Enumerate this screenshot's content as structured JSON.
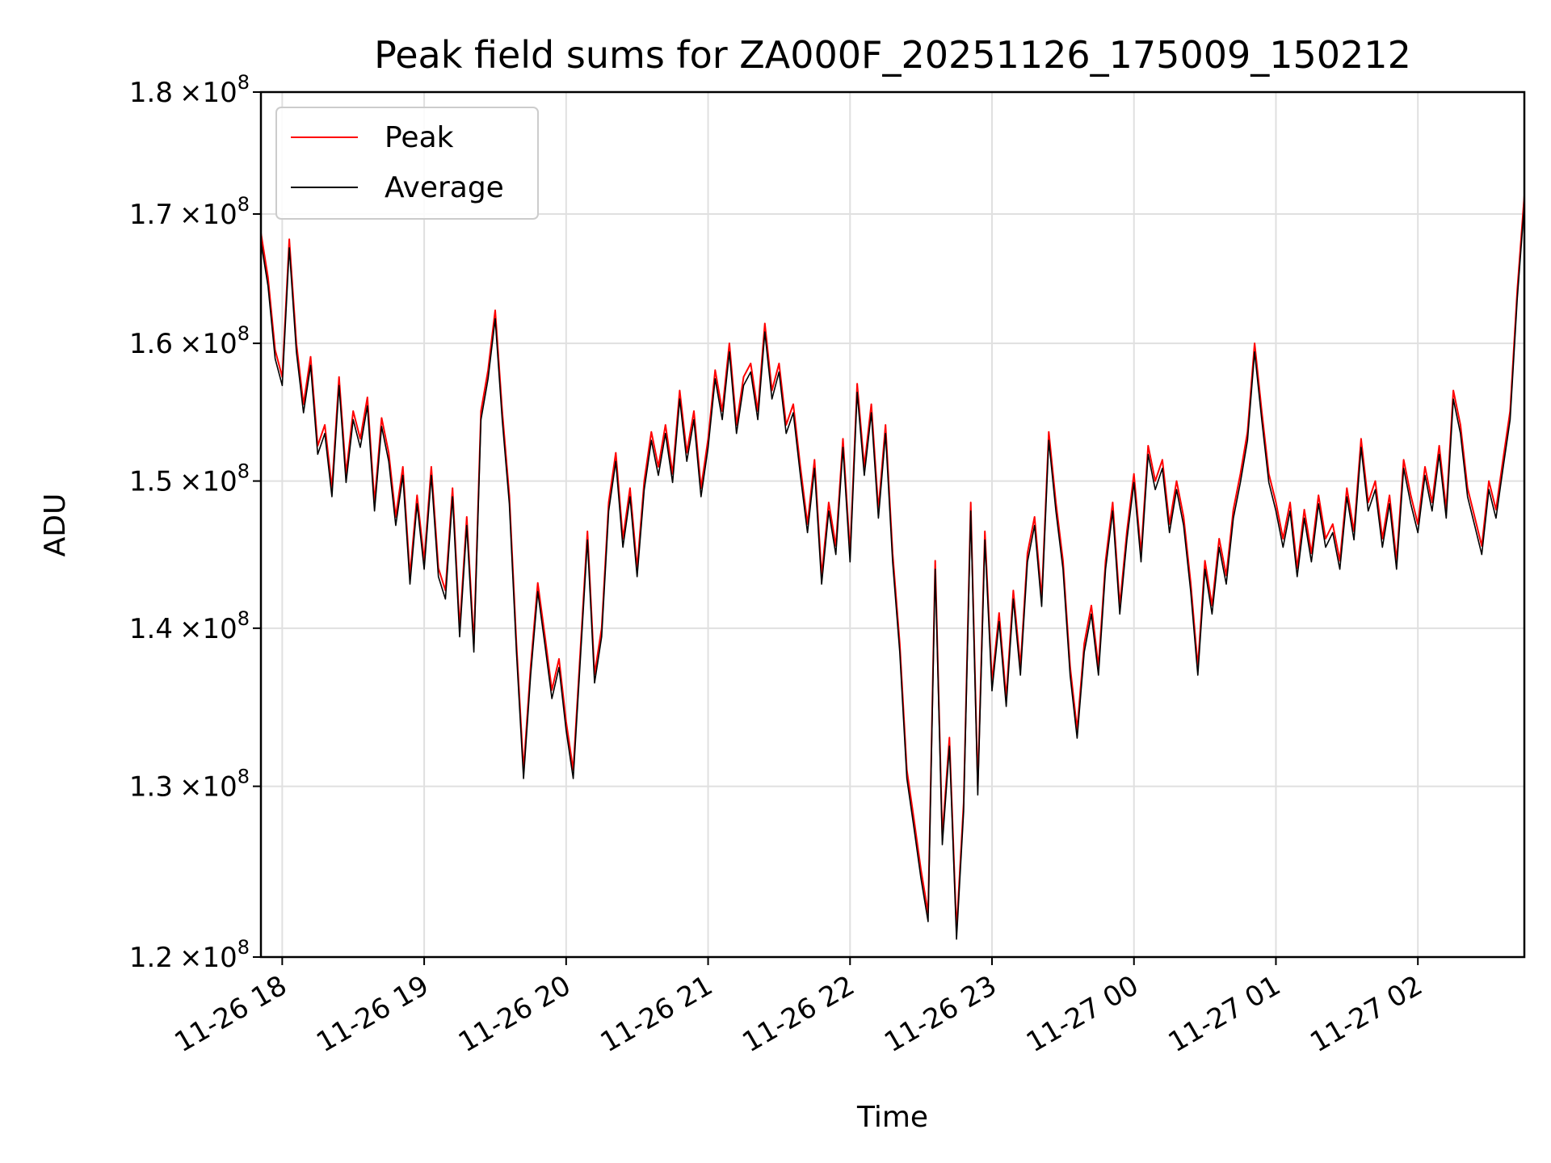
{
  "chart_data": {
    "type": "line",
    "title": "Peak field sums for ZA000F_20251126_175009_150212",
    "xlabel": "Time",
    "ylabel": "ADU",
    "log_y": true,
    "grid": true,
    "legend_position": "upper-left",
    "xlim_hours": [
      17.85,
      26.75
    ],
    "ylim": [
      120000000,
      180000000
    ],
    "x_ticks": [
      {
        "hour": 18,
        "label": "11-26 18"
      },
      {
        "hour": 19,
        "label": "11-26 19"
      },
      {
        "hour": 20,
        "label": "11-26 20"
      },
      {
        "hour": 21,
        "label": "11-26 21"
      },
      {
        "hour": 22,
        "label": "11-26 22"
      },
      {
        "hour": 23,
        "label": "11-26 23"
      },
      {
        "hour": 24,
        "label": "11-27 00"
      },
      {
        "hour": 25,
        "label": "11-27 01"
      },
      {
        "hour": 26,
        "label": "11-27 02"
      }
    ],
    "y_ticks": [
      {
        "value": 120000000,
        "mantissa": "1.2",
        "exp": "8"
      },
      {
        "value": 130000000,
        "mantissa": "1.3",
        "exp": "8"
      },
      {
        "value": 140000000,
        "mantissa": "1.4",
        "exp": "8"
      },
      {
        "value": 150000000,
        "mantissa": "1.5",
        "exp": "8"
      },
      {
        "value": 160000000,
        "mantissa": "1.6",
        "exp": "8"
      },
      {
        "value": 170000000,
        "mantissa": "1.7",
        "exp": "8"
      },
      {
        "value": 180000000,
        "mantissa": "1.8",
        "exp": "8"
      }
    ],
    "times_label": "×10",
    "series": [
      {
        "name": "Peak",
        "color": "#ff0000",
        "points": [
          [
            17.85,
            168.5
          ],
          [
            17.9,
            165.0
          ],
          [
            17.95,
            159.5
          ],
          [
            18.0,
            157.5
          ],
          [
            18.05,
            168.0
          ],
          [
            18.1,
            160.0
          ],
          [
            18.15,
            155.5
          ],
          [
            18.2,
            159.0
          ],
          [
            18.25,
            152.5
          ],
          [
            18.3,
            154.0
          ],
          [
            18.35,
            149.5
          ],
          [
            18.4,
            157.5
          ],
          [
            18.45,
            150.5
          ],
          [
            18.5,
            155.0
          ],
          [
            18.55,
            153.0
          ],
          [
            18.6,
            156.0
          ],
          [
            18.65,
            148.5
          ],
          [
            18.7,
            154.5
          ],
          [
            18.75,
            152.0
          ],
          [
            18.8,
            147.5
          ],
          [
            18.85,
            151.0
          ],
          [
            18.9,
            143.5
          ],
          [
            18.95,
            149.0
          ],
          [
            19.0,
            144.5
          ],
          [
            19.05,
            151.0
          ],
          [
            19.1,
            144.0
          ],
          [
            19.15,
            142.5
          ],
          [
            19.2,
            149.5
          ],
          [
            19.25,
            140.0
          ],
          [
            19.3,
            147.5
          ],
          [
            19.35,
            139.0
          ],
          [
            19.4,
            155.0
          ],
          [
            19.45,
            158.0
          ],
          [
            19.5,
            162.5
          ],
          [
            19.55,
            155.0
          ],
          [
            19.6,
            149.0
          ],
          [
            19.65,
            139.0
          ],
          [
            19.7,
            131.0
          ],
          [
            19.75,
            137.5
          ],
          [
            19.8,
            143.0
          ],
          [
            19.85,
            139.5
          ],
          [
            19.9,
            136.0
          ],
          [
            19.95,
            138.0
          ],
          [
            20.0,
            134.0
          ],
          [
            20.05,
            131.0
          ],
          [
            20.1,
            138.5
          ],
          [
            20.15,
            146.5
          ],
          [
            20.2,
            137.0
          ],
          [
            20.25,
            140.0
          ],
          [
            20.3,
            148.5
          ],
          [
            20.35,
            152.0
          ],
          [
            20.4,
            146.0
          ],
          [
            20.45,
            149.5
          ],
          [
            20.5,
            144.0
          ],
          [
            20.55,
            150.0
          ],
          [
            20.6,
            153.5
          ],
          [
            20.65,
            151.0
          ],
          [
            20.7,
            154.0
          ],
          [
            20.75,
            150.5
          ],
          [
            20.8,
            156.5
          ],
          [
            20.85,
            152.0
          ],
          [
            20.9,
            155.0
          ],
          [
            20.95,
            149.5
          ],
          [
            21.0,
            153.0
          ],
          [
            21.05,
            158.0
          ],
          [
            21.1,
            155.0
          ],
          [
            21.15,
            160.0
          ],
          [
            21.2,
            154.0
          ],
          [
            21.25,
            157.5
          ],
          [
            21.3,
            158.5
          ],
          [
            21.35,
            155.0
          ],
          [
            21.4,
            161.5
          ],
          [
            21.45,
            156.5
          ],
          [
            21.5,
            158.5
          ],
          [
            21.55,
            154.0
          ],
          [
            21.6,
            155.5
          ],
          [
            21.65,
            151.0
          ],
          [
            21.7,
            147.0
          ],
          [
            21.75,
            151.5
          ],
          [
            21.8,
            143.5
          ],
          [
            21.85,
            148.5
          ],
          [
            21.9,
            145.5
          ],
          [
            21.95,
            153.0
          ],
          [
            22.0,
            145.0
          ],
          [
            22.05,
            157.0
          ],
          [
            22.1,
            151.0
          ],
          [
            22.15,
            155.5
          ],
          [
            22.2,
            148.0
          ],
          [
            22.25,
            154.0
          ],
          [
            22.3,
            145.0
          ],
          [
            22.35,
            139.0
          ],
          [
            22.4,
            131.0
          ],
          [
            22.45,
            128.0
          ],
          [
            22.5,
            125.0
          ],
          [
            22.55,
            122.5
          ],
          [
            22.6,
            144.5
          ],
          [
            22.65,
            127.0
          ],
          [
            22.7,
            133.0
          ],
          [
            22.75,
            121.5
          ],
          [
            22.8,
            129.0
          ],
          [
            22.85,
            148.5
          ],
          [
            22.9,
            130.0
          ],
          [
            22.95,
            146.5
          ],
          [
            23.0,
            136.5
          ],
          [
            23.05,
            141.0
          ],
          [
            23.1,
            135.5
          ],
          [
            23.15,
            142.5
          ],
          [
            23.2,
            137.5
          ],
          [
            23.25,
            145.0
          ],
          [
            23.3,
            147.5
          ],
          [
            23.35,
            142.0
          ],
          [
            23.4,
            153.5
          ],
          [
            23.45,
            148.5
          ],
          [
            23.5,
            144.5
          ],
          [
            23.55,
            137.5
          ],
          [
            23.6,
            133.5
          ],
          [
            23.65,
            139.0
          ],
          [
            23.7,
            141.5
          ],
          [
            23.75,
            137.5
          ],
          [
            23.8,
            144.5
          ],
          [
            23.85,
            148.5
          ],
          [
            23.9,
            141.5
          ],
          [
            23.95,
            146.5
          ],
          [
            24.0,
            150.5
          ],
          [
            24.05,
            145.0
          ],
          [
            24.1,
            152.5
          ],
          [
            24.15,
            150.0
          ],
          [
            24.2,
            151.5
          ],
          [
            24.25,
            147.0
          ],
          [
            24.3,
            150.0
          ],
          [
            24.35,
            147.5
          ],
          [
            24.4,
            143.0
          ],
          [
            24.45,
            137.5
          ],
          [
            24.5,
            144.5
          ],
          [
            24.55,
            141.5
          ],
          [
            24.6,
            146.0
          ],
          [
            24.65,
            143.5
          ],
          [
            24.7,
            148.0
          ],
          [
            24.75,
            150.5
          ],
          [
            24.8,
            153.5
          ],
          [
            24.85,
            160.0
          ],
          [
            24.9,
            155.0
          ],
          [
            24.95,
            150.5
          ],
          [
            25.0,
            148.5
          ],
          [
            25.05,
            146.0
          ],
          [
            25.1,
            148.5
          ],
          [
            25.15,
            144.0
          ],
          [
            25.2,
            148.0
          ],
          [
            25.25,
            145.0
          ],
          [
            25.3,
            149.0
          ],
          [
            25.35,
            146.0
          ],
          [
            25.4,
            147.0
          ],
          [
            25.45,
            144.5
          ],
          [
            25.5,
            149.5
          ],
          [
            25.55,
            146.5
          ],
          [
            25.6,
            153.0
          ],
          [
            25.65,
            148.5
          ],
          [
            25.7,
            150.0
          ],
          [
            25.75,
            146.0
          ],
          [
            25.8,
            149.0
          ],
          [
            25.85,
            144.5
          ],
          [
            25.9,
            151.5
          ],
          [
            25.95,
            149.0
          ],
          [
            26.0,
            147.0
          ],
          [
            26.05,
            151.0
          ],
          [
            26.1,
            148.5
          ],
          [
            26.15,
            152.5
          ],
          [
            26.2,
            148.0
          ],
          [
            26.25,
            156.5
          ],
          [
            26.3,
            154.0
          ],
          [
            26.35,
            149.5
          ],
          [
            26.4,
            147.5
          ],
          [
            26.45,
            145.5
          ],
          [
            26.5,
            150.0
          ],
          [
            26.55,
            148.0
          ],
          [
            26.6,
            151.5
          ],
          [
            26.65,
            155.0
          ],
          [
            26.7,
            164.0
          ],
          [
            26.75,
            171.5
          ]
        ]
      },
      {
        "name": "Average",
        "color": "#000000"
      }
    ]
  }
}
